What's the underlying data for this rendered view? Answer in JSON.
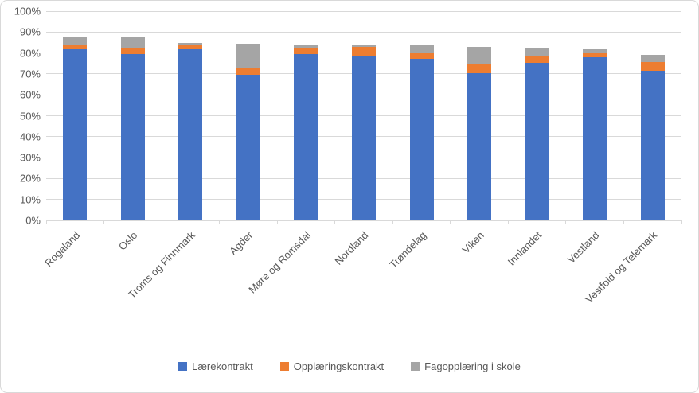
{
  "chart_data": {
    "type": "bar",
    "stacked": true,
    "orientation": "vertical",
    "title": "",
    "xlabel": "",
    "ylabel": "",
    "ylim": [
      0,
      100
    ],
    "ytick_step": 10,
    "ytick_labels": [
      "0%",
      "10%",
      "20%",
      "30%",
      "40%",
      "50%",
      "60%",
      "70%",
      "80%",
      "90%",
      "100%"
    ],
    "grid": true,
    "legend_position": "bottom",
    "categories": [
      "Rogaland",
      "Oslo",
      "Troms og Finnmark",
      "Agder",
      "Møre og Romsdal",
      "Nordland",
      "Trøndelag",
      "Viken",
      "Innlandet",
      "Vestland",
      "Vestfold og Telemark"
    ],
    "series": [
      {
        "name": "Lærekontrakt",
        "color": "#4472C4",
        "values": [
          81.7,
          79.5,
          81.8,
          69.6,
          79.5,
          78.8,
          77.2,
          70.5,
          75.3,
          77.8,
          71.6
        ]
      },
      {
        "name": "Opplæringskontrakt",
        "color": "#ED7D31",
        "values": [
          2.3,
          3.2,
          2.2,
          3.2,
          3.1,
          4.0,
          3.2,
          4.6,
          3.5,
          2.4,
          4.2
        ]
      },
      {
        "name": "Fagopplæring i skole",
        "color": "#A5A5A5",
        "values": [
          3.9,
          4.7,
          0.8,
          11.8,
          1.4,
          1.0,
          3.2,
          7.9,
          3.8,
          1.6,
          3.2
        ]
      }
    ]
  },
  "style_colors": {
    "gridline": "#d9d9d9",
    "axis_text": "#595959",
    "frame_border": "#d9d9d9",
    "background": "#ffffff"
  }
}
